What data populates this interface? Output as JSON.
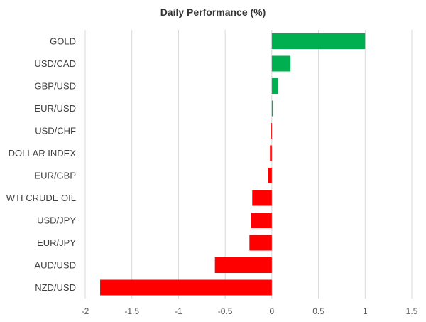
{
  "chart_data": {
    "type": "bar",
    "orientation": "horizontal",
    "title": "Daily Performance (%)",
    "xlabel": "",
    "ylabel": "",
    "xlim": [
      -2,
      1.5
    ],
    "grid": true,
    "ticks": [
      {
        "value": -2,
        "label": "-2"
      },
      {
        "value": -1.5,
        "label": "-1.5"
      },
      {
        "value": -1,
        "label": "-1"
      },
      {
        "value": -0.5,
        "label": "-0.5"
      },
      {
        "value": 0,
        "label": "0"
      },
      {
        "value": 0.5,
        "label": "0.5"
      },
      {
        "value": 1,
        "label": "1"
      },
      {
        "value": 1.5,
        "label": "1.5"
      }
    ],
    "categories": [
      "GOLD",
      "USD/CAD",
      "GBP/USD",
      "EUR/USD",
      "USD/CHF",
      "DOLLAR INDEX",
      "EUR/GBP",
      "WTI CRUDE OIL",
      "USD/JPY",
      "EUR/JPY",
      "AUD/USD",
      "NZD/USD"
    ],
    "values": [
      1.0,
      0.2,
      0.07,
      0.01,
      -0.01,
      -0.02,
      -0.04,
      -0.21,
      -0.22,
      -0.24,
      -0.61,
      -1.84
    ],
    "colors": {
      "positive": "#00b050",
      "negative": "#ff0000",
      "grid": "#d9d9d9"
    }
  }
}
